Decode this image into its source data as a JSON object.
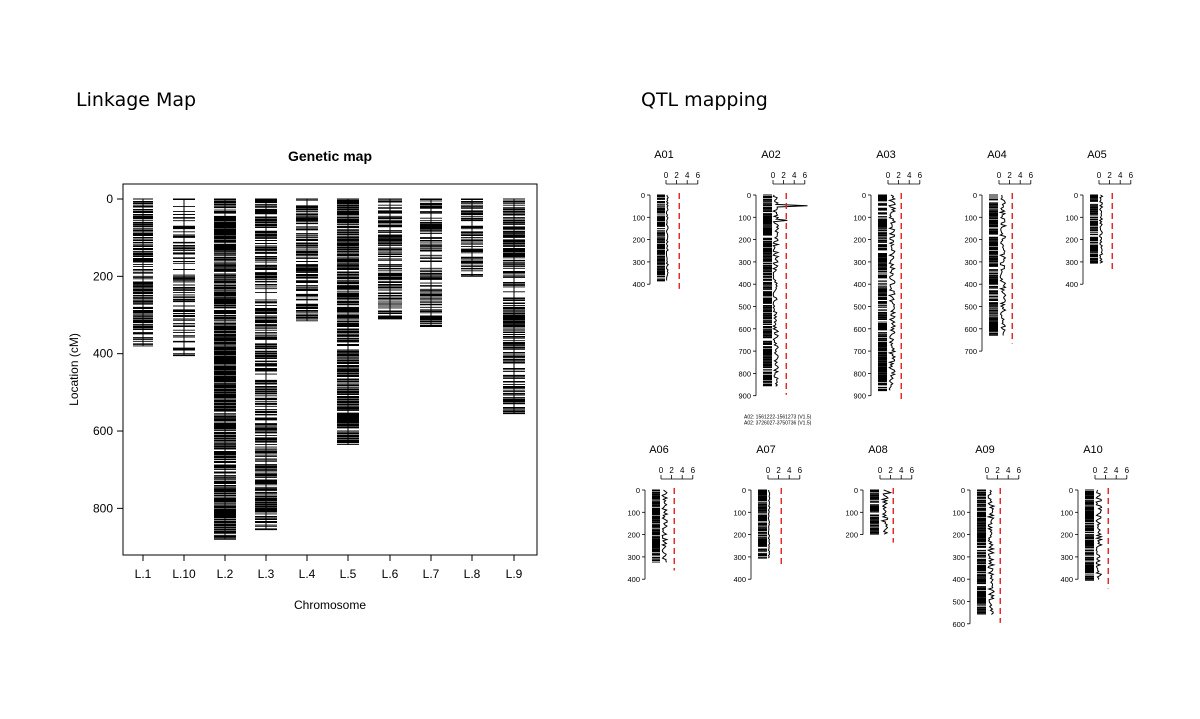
{
  "headings": {
    "linkage": "Linkage Map",
    "qtl": "QTL mapping"
  },
  "chart_data": [
    {
      "type": "linkage-map",
      "title": "Genetic map",
      "xlabel": "Chromosome",
      "ylabel": "Location (cM)",
      "ylim": [
        0,
        920
      ],
      "yticks": [
        "0",
        "200",
        "400",
        "600",
        "800"
      ],
      "categories": [
        "L.1",
        "L.10",
        "L.2",
        "L.3",
        "L.4",
        "L.5",
        "L.6",
        "L.7",
        "L.8",
        "L.9"
      ],
      "lengths": [
        380,
        405,
        880,
        855,
        315,
        635,
        310,
        330,
        200,
        555
      ]
    },
    {
      "type": "qtl-lod-profiles",
      "lod_ticks": [
        "0",
        "2",
        "4",
        "6"
      ],
      "threshold": 2.5,
      "threshold_color": "#e02020",
      "chromosomes": [
        {
          "name": "A01",
          "length": 385,
          "yticks": [
            "0",
            "100",
            "200",
            "300",
            "400"
          ],
          "peak_lod": 0.5
        },
        {
          "name": "A02",
          "length": 860,
          "yticks": [
            "0",
            "100",
            "200",
            "300",
            "400",
            "500",
            "600",
            "700",
            "800",
            "900"
          ],
          "peak_lod": 6.5,
          "notes": [
            "A02: 1561222-1561273  (V1.5)",
            "A02: 3726027-3750736  (V1.5)"
          ]
        },
        {
          "name": "A03",
          "length": 880,
          "yticks": [
            "0",
            "100",
            "200",
            "300",
            "400",
            "500",
            "600",
            "700",
            "800",
            "900"
          ],
          "peak_lod": 1.6
        },
        {
          "name": "A04",
          "length": 630,
          "yticks": [
            "0",
            "100",
            "200",
            "300",
            "400",
            "500",
            "600",
            "700"
          ],
          "peak_lod": 1.5
        },
        {
          "name": "A05",
          "length": 310,
          "yticks": [
            "0",
            "100",
            "200",
            "300",
            "400"
          ],
          "peak_lod": 0.8
        },
        {
          "name": "A06",
          "length": 325,
          "yticks": [
            "0",
            "100",
            "200",
            "300",
            "400"
          ],
          "peak_lod": 1.4
        },
        {
          "name": "A07",
          "length": 310,
          "yticks": [
            "0",
            "100",
            "200",
            "300",
            "400"
          ],
          "peak_lod": 0.4
        },
        {
          "name": "A08",
          "length": 200,
          "yticks": [
            "0",
            "100",
            "200"
          ],
          "peak_lod": 2.0
        },
        {
          "name": "A09",
          "length": 560,
          "yticks": [
            "0",
            "100",
            "200",
            "300",
            "400",
            "500",
            "600"
          ],
          "peak_lod": 1.6
        },
        {
          "name": "A10",
          "length": 405,
          "yticks": [
            "0",
            "100",
            "200",
            "300",
            "400"
          ],
          "peak_lod": 1.5
        }
      ]
    }
  ]
}
